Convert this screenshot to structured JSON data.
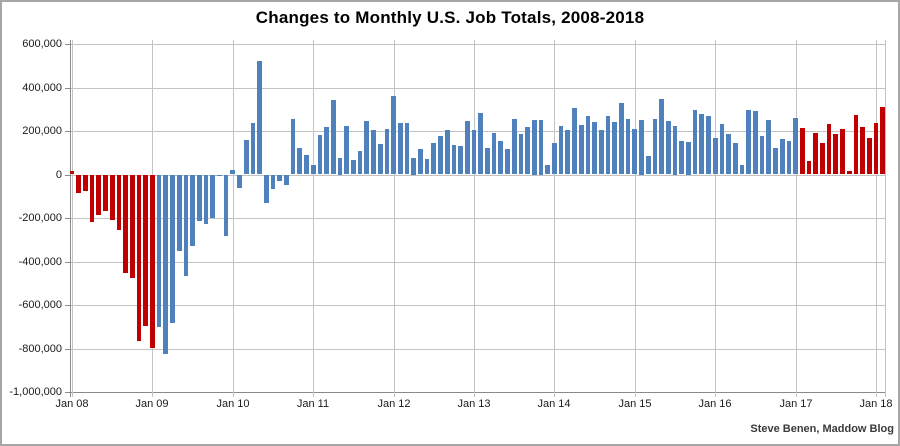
{
  "title": "Changes to Monthly U.S. Job Totals, 2008-2018",
  "attribution": "Steve Benen, Maddow Blog",
  "colors": {
    "bar_red": "#c00000",
    "bar_blue": "#4f81bd",
    "gridline": "#c3c3c3",
    "axis_line": "#8a8a8a",
    "outer_border": "#a6a6a6",
    "title_text": "#000000",
    "tick_text": "#1a1a1a"
  },
  "chart_data": {
    "type": "bar",
    "title": "Changes to Monthly U.S. Job Totals, 2008-2018",
    "xlabel": "",
    "ylabel": "",
    "ylim": [
      -1000000,
      600000
    ],
    "y_gridline_step": 200000,
    "grid": true,
    "legend": "none",
    "bar_period": "monthly",
    "first_bar_month": "Jan 2008",
    "last_bar_month": "Feb 2018",
    "n_bars": 122,
    "x_tick_labels": [
      "Jan 08",
      "Jan 09",
      "Jan 10",
      "Jan 11",
      "Jan 12",
      "Jan 13",
      "Jan 14",
      "Jan 15",
      "Jan 16",
      "Jan 17",
      "Jan 18"
    ],
    "y_tick_labels": [
      "600,000",
      "400,000",
      "200,000",
      "0",
      "-200,000",
      "-400,000",
      "-600,000",
      "-800,000",
      "-1,000,000"
    ],
    "values": [
      15000,
      -85000,
      -75000,
      -218000,
      -185000,
      -170000,
      -210000,
      -255000,
      -452000,
      -474000,
      -765000,
      -697000,
      -798000,
      -701000,
      -826000,
      -684000,
      -354000,
      -467000,
      -327000,
      -216000,
      -227000,
      -198000,
      -6000,
      -283000,
      20000,
      -60000,
      160000,
      238000,
      522000,
      -130000,
      -65000,
      -30000,
      -50000,
      255000,
      120000,
      90000,
      42000,
      183000,
      220000,
      342000,
      75000,
      224000,
      65000,
      106000,
      245000,
      205000,
      140000,
      208000,
      360000,
      237000,
      237000,
      75000,
      115000,
      70000,
      145000,
      176000,
      203000,
      134000,
      133000,
      244000,
      205000,
      285000,
      120000,
      190000,
      155000,
      115000,
      255000,
      185000,
      220000,
      250000,
      250000,
      45000,
      144000,
      222000,
      203000,
      304000,
      229000,
      267000,
      243000,
      203000,
      271000,
      243000,
      331000,
      256000,
      210000,
      250000,
      85000,
      255000,
      345000,
      245000,
      225000,
      155000,
      150000,
      295000,
      280000,
      270000,
      168000,
      233000,
      186000,
      144000,
      43000,
      297000,
      291000,
      176000,
      249000,
      124000,
      164000,
      155000,
      259000,
      215000,
      60000,
      190000,
      145000,
      230000,
      185000,
      210000,
      14000,
      272000,
      218000,
      170000,
      238000,
      310000
    ],
    "bar_color_coding": {
      "red_hex": "#c00000",
      "blue_hex": "#4f81bd",
      "red_index_ranges": [
        [
          0,
          12
        ],
        [
          109,
          121
        ]
      ]
    }
  }
}
